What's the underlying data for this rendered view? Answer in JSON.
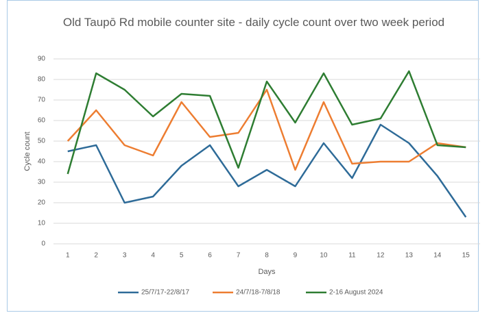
{
  "chart_data": {
    "type": "line",
    "title": "Old Taupō Rd mobile counter site - daily cycle count over two week period",
    "x_label": "Days",
    "y_label": "Cycle count",
    "categories": [
      "1",
      "2",
      "3",
      "4",
      "5",
      "6",
      "7",
      "8",
      "9",
      "10",
      "11",
      "12",
      "13",
      "14",
      "15"
    ],
    "series": [
      {
        "name": "25/7/17-22/8/17",
        "color": "#2e6b98",
        "values": [
          45,
          48,
          20,
          23,
          38,
          48,
          28,
          36,
          28,
          49,
          32,
          58,
          49,
          33,
          13
        ]
      },
      {
        "name": "24/7/18-7/8/18",
        "color": "#ed7d31",
        "values": [
          50,
          65,
          48,
          43,
          69,
          52,
          54,
          75,
          36,
          69,
          39,
          40,
          40,
          49,
          47
        ]
      },
      {
        "name": "2-16 August 2024",
        "color": "#2e7d32",
        "values": [
          34,
          83,
          75,
          62,
          73,
          72,
          37,
          79,
          59,
          83,
          58,
          61,
          84,
          48,
          47
        ]
      }
    ],
    "ylim": [
      0,
      90
    ],
    "yticks": [
      0,
      10,
      20,
      30,
      40,
      50,
      60,
      70,
      80,
      90
    ],
    "grid": true,
    "legend": "bottom"
  }
}
